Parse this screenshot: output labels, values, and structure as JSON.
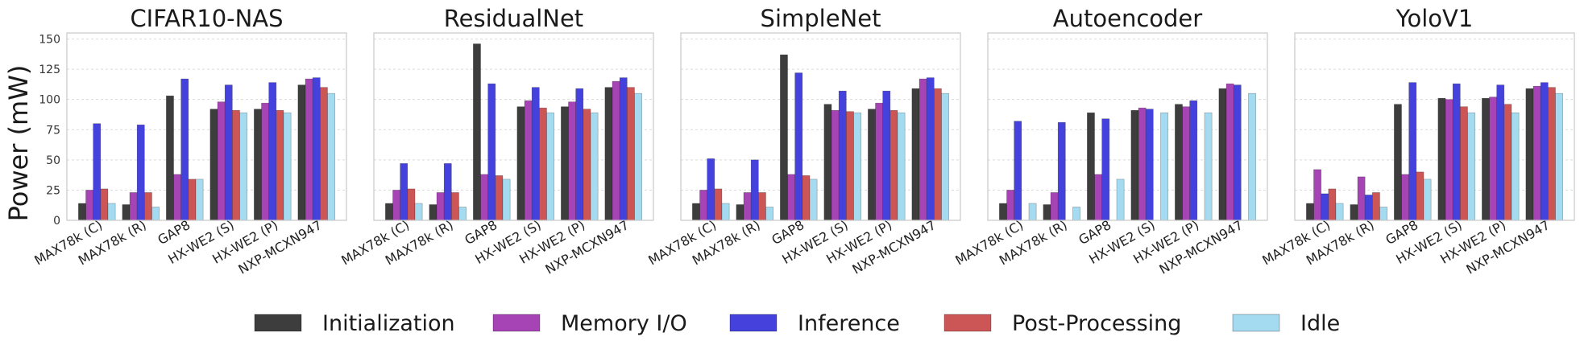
{
  "ylabel": "Power (mW)",
  "colors": {
    "Initialization": "#3d3d3d",
    "Memory I/O": "#a744b5",
    "Inference": "#4441dc",
    "Post-Processing": "#cc5656",
    "Idle": "#a5dbf0"
  },
  "legend": [
    "Initialization",
    "Memory I/O",
    "Inference",
    "Post-Processing",
    "Idle"
  ],
  "chart_data": [
    {
      "type": "bar",
      "title": "CIFAR10-NAS",
      "categories": [
        "MAX78k (C)",
        "MAX78k (R)",
        "GAP8",
        "HX-WE2 (S)",
        "HX-WE2 (P)",
        "NXP-MCXN947"
      ],
      "ylim": [
        0,
        155
      ],
      "yticks": [
        0,
        25,
        50,
        75,
        100,
        125,
        150
      ],
      "series": [
        {
          "name": "Initialization",
          "values": [
            14,
            13,
            103,
            92,
            92,
            112
          ]
        },
        {
          "name": "Memory I/O",
          "values": [
            25,
            23,
            38,
            98,
            97,
            117
          ]
        },
        {
          "name": "Inference",
          "values": [
            80,
            79,
            117,
            112,
            114,
            118
          ]
        },
        {
          "name": "Post-Processing",
          "values": [
            26,
            23,
            34,
            91,
            91,
            110
          ]
        },
        {
          "name": "Idle",
          "values": [
            14,
            11,
            34,
            89,
            89,
            105
          ]
        }
      ]
    },
    {
      "type": "bar",
      "title": "ResidualNet",
      "categories": [
        "MAX78k (C)",
        "MAX78k (R)",
        "GAP8",
        "HX-WE2 (S)",
        "HX-WE2 (P)",
        "NXP-MCXN947"
      ],
      "ylim": [
        0,
        155
      ],
      "series": [
        {
          "name": "Initialization",
          "values": [
            14,
            13,
            146,
            94,
            94,
            110
          ]
        },
        {
          "name": "Memory I/O",
          "values": [
            25,
            23,
            38,
            99,
            98,
            115
          ]
        },
        {
          "name": "Inference",
          "values": [
            47,
            47,
            113,
            110,
            109,
            118
          ]
        },
        {
          "name": "Post-Processing",
          "values": [
            26,
            23,
            37,
            93,
            92,
            110
          ]
        },
        {
          "name": "Idle",
          "values": [
            14,
            11,
            34,
            89,
            89,
            105
          ]
        }
      ]
    },
    {
      "type": "bar",
      "title": "SimpleNet",
      "categories": [
        "MAX78k (C)",
        "MAX78k (R)",
        "GAP8",
        "HX-WE2 (S)",
        "HX-WE2 (P)",
        "NXP-MCXN947"
      ],
      "ylim": [
        0,
        155
      ],
      "series": [
        {
          "name": "Initialization",
          "values": [
            14,
            13,
            137,
            96,
            92,
            109
          ]
        },
        {
          "name": "Memory I/O",
          "values": [
            25,
            23,
            38,
            91,
            97,
            117
          ]
        },
        {
          "name": "Inference",
          "values": [
            51,
            50,
            122,
            107,
            107,
            118
          ]
        },
        {
          "name": "Post-Processing",
          "values": [
            26,
            23,
            37,
            90,
            91,
            109
          ]
        },
        {
          "name": "Idle",
          "values": [
            14,
            11,
            34,
            89,
            89,
            105
          ]
        }
      ]
    },
    {
      "type": "bar",
      "title": "Autoencoder",
      "categories": [
        "MAX78k (C)",
        "MAX78k (R)",
        "GAP8",
        "HX-WE2 (S)",
        "HX-WE2 (P)",
        "NXP-MCXN947"
      ],
      "ylim": [
        0,
        155
      ],
      "series": [
        {
          "name": "Initialization",
          "values": [
            14,
            13,
            89,
            91,
            96,
            109
          ]
        },
        {
          "name": "Memory I/O",
          "values": [
            25,
            23,
            38,
            93,
            94,
            113
          ]
        },
        {
          "name": "Inference",
          "values": [
            82,
            81,
            84,
            92,
            99,
            112
          ]
        },
        {
          "name": "Post-Processing",
          "values": [
            0,
            0,
            0,
            0,
            0,
            0
          ]
        },
        {
          "name": "Idle",
          "values": [
            14,
            11,
            34,
            89,
            89,
            105
          ]
        }
      ]
    },
    {
      "type": "bar",
      "title": "YoloV1",
      "categories": [
        "MAX78k (C)",
        "MAX78k (R)",
        "GAP8",
        "HX-WE2 (S)",
        "HX-WE2 (P)",
        "NXP-MCXN947"
      ],
      "ylim": [
        0,
        155
      ],
      "series": [
        {
          "name": "Initialization",
          "values": [
            14,
            13,
            96,
            101,
            101,
            109
          ]
        },
        {
          "name": "Memory I/O",
          "values": [
            42,
            36,
            38,
            100,
            102,
            111
          ]
        },
        {
          "name": "Inference",
          "values": [
            22,
            21,
            114,
            113,
            112,
            114
          ]
        },
        {
          "name": "Post-Processing",
          "values": [
            26,
            23,
            40,
            94,
            96,
            110
          ]
        },
        {
          "name": "Idle",
          "values": [
            14,
            11,
            34,
            89,
            89,
            105
          ]
        }
      ]
    }
  ]
}
